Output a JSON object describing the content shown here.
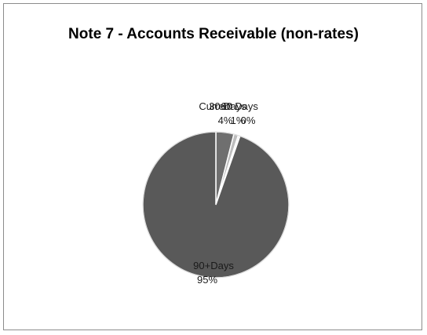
{
  "chart_data": {
    "type": "pie",
    "title": "Note 7 - Accounts Receivable (non-rates)",
    "slices": [
      {
        "label": "Current",
        "value": 4,
        "display": "4%",
        "color": "#6f6f6f"
      },
      {
        "label": "30 Days",
        "value": 1,
        "display": "1%",
        "color": "#bdbdbd"
      },
      {
        "label": "60 Days",
        "value": 0.4,
        "display": "0%",
        "color": "#e8e8e8"
      },
      {
        "label": "90+Days",
        "value": 95,
        "display": "95%",
        "color": "#595959"
      }
    ]
  }
}
